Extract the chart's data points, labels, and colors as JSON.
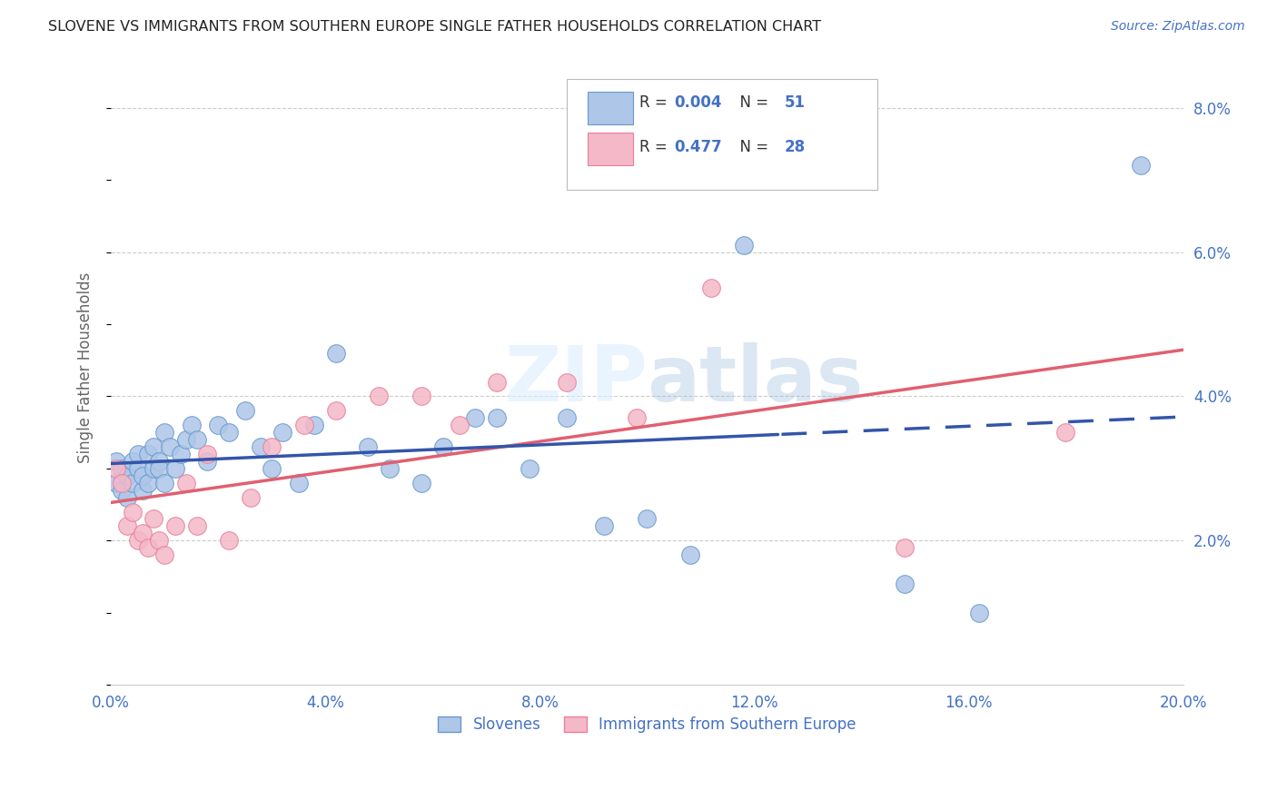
{
  "title": "SLOVENE VS IMMIGRANTS FROM SOUTHERN EUROPE SINGLE FATHER HOUSEHOLDS CORRELATION CHART",
  "source": "Source: ZipAtlas.com",
  "ylabel": "Single Father Households",
  "xlim": [
    0.0,
    0.2
  ],
  "ylim": [
    0.0,
    0.088
  ],
  "xticks": [
    0.0,
    0.04,
    0.08,
    0.12,
    0.16,
    0.2
  ],
  "xtick_labels": [
    "0.0%",
    "4.0%",
    "8.0%",
    "12.0%",
    "16.0%",
    "20.0%"
  ],
  "yticks_right": [
    0.02,
    0.04,
    0.06,
    0.08
  ],
  "ytick_labels_right": [
    "2.0%",
    "4.0%",
    "6.0%",
    "8.0%"
  ],
  "legend_label1": "Slovenes",
  "legend_label2": "Immigrants from Southern Europe",
  "color_blue_fill": "#aec6e8",
  "color_blue_edge": "#6699cc",
  "color_pink_fill": "#f4b8c8",
  "color_pink_edge": "#e8809a",
  "color_blue_line": "#3355aa",
  "color_pink_line": "#e06070",
  "color_text_blue": "#4472c4",
  "color_grid": "#cccccc",
  "background": "#ffffff",
  "slovenes_x": [
    0.001,
    0.001,
    0.002,
    0.002,
    0.003,
    0.003,
    0.004,
    0.004,
    0.005,
    0.005,
    0.006,
    0.006,
    0.007,
    0.007,
    0.008,
    0.008,
    0.009,
    0.009,
    0.01,
    0.01,
    0.011,
    0.012,
    0.013,
    0.014,
    0.015,
    0.016,
    0.018,
    0.02,
    0.022,
    0.025,
    0.028,
    0.03,
    0.032,
    0.035,
    0.038,
    0.042,
    0.048,
    0.052,
    0.058,
    0.062,
    0.068,
    0.072,
    0.078,
    0.085,
    0.092,
    0.1,
    0.108,
    0.118,
    0.148,
    0.162,
    0.192
  ],
  "slovenes_y": [
    0.028,
    0.031,
    0.03,
    0.027,
    0.026,
    0.029,
    0.031,
    0.028,
    0.03,
    0.032,
    0.027,
    0.029,
    0.028,
    0.032,
    0.03,
    0.033,
    0.031,
    0.03,
    0.035,
    0.028,
    0.033,
    0.03,
    0.032,
    0.034,
    0.036,
    0.034,
    0.031,
    0.036,
    0.035,
    0.038,
    0.033,
    0.03,
    0.035,
    0.028,
    0.036,
    0.046,
    0.033,
    0.03,
    0.028,
    0.033,
    0.037,
    0.037,
    0.03,
    0.037,
    0.022,
    0.023,
    0.018,
    0.061,
    0.014,
    0.01,
    0.072
  ],
  "immigrants_x": [
    0.001,
    0.002,
    0.003,
    0.004,
    0.005,
    0.006,
    0.007,
    0.008,
    0.009,
    0.01,
    0.012,
    0.014,
    0.016,
    0.018,
    0.022,
    0.026,
    0.03,
    0.036,
    0.042,
    0.05,
    0.058,
    0.065,
    0.072,
    0.085,
    0.098,
    0.112,
    0.148,
    0.178
  ],
  "immigrants_y": [
    0.03,
    0.028,
    0.022,
    0.024,
    0.02,
    0.021,
    0.019,
    0.023,
    0.02,
    0.018,
    0.022,
    0.028,
    0.022,
    0.032,
    0.02,
    0.026,
    0.033,
    0.036,
    0.038,
    0.04,
    0.04,
    0.036,
    0.042,
    0.042,
    0.037,
    0.055,
    0.019,
    0.035
  ],
  "blue_trend_solid_end": 0.125,
  "blue_trend_start_x": 0.0,
  "blue_trend_start_y": 0.03,
  "blue_trend_end_y": 0.031,
  "pink_trend_start_x": 0.0,
  "pink_trend_start_y": 0.018,
  "pink_trend_end_x": 0.2,
  "pink_trend_end_y": 0.043
}
